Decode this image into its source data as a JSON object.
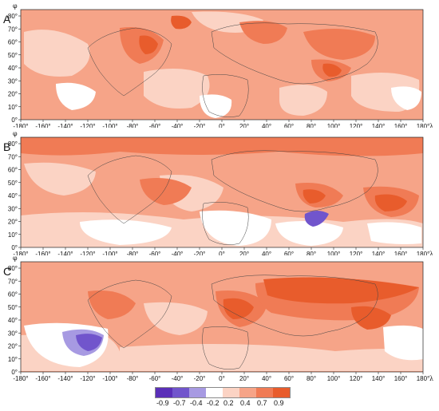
{
  "panels": [
    {
      "label": "A",
      "id": "a"
    },
    {
      "label": "B",
      "id": "b"
    },
    {
      "label": "C",
      "id": "c"
    }
  ],
  "axes": {
    "lon_symbol": "λ",
    "lat_symbol": "φ",
    "lon_ticks": [
      "-180°",
      "-160°",
      "-140°",
      "-120°",
      "-100°",
      "-80°",
      "-60°",
      "-40°",
      "-20°",
      "0°",
      "20°",
      "40°",
      "60°",
      "80°",
      "100°",
      "120°",
      "140°",
      "160°",
      "180°"
    ],
    "lat_ticks": [
      "0°",
      "10°",
      "20°",
      "30°",
      "40°",
      "50°",
      "60°",
      "70°",
      "80°"
    ]
  },
  "legend": {
    "bins": [
      {
        "color": "#5a2fb8"
      },
      {
        "color": "#7155cc"
      },
      {
        "color": "#a79ae2"
      },
      {
        "color": "#ffffff"
      },
      {
        "color": "#fbd3c4"
      },
      {
        "color": "#f6a488"
      },
      {
        "color": "#f07b55"
      },
      {
        "color": "#e85c2c"
      }
    ],
    "labels": [
      "-0.9",
      "-0.7",
      "-0.4",
      "-0.2",
      "0.2",
      "0.4",
      "0.7",
      "0.9"
    ]
  },
  "colors": {
    "background_pale": "#fbd3c4",
    "medium": "#f6a488",
    "strong": "#f07b55",
    "very_strong": "#e85c2c",
    "white": "#ffffff",
    "light_blue": "#a79ae2",
    "blue": "#7155cc",
    "deep_blue": "#5a2fb8"
  }
}
